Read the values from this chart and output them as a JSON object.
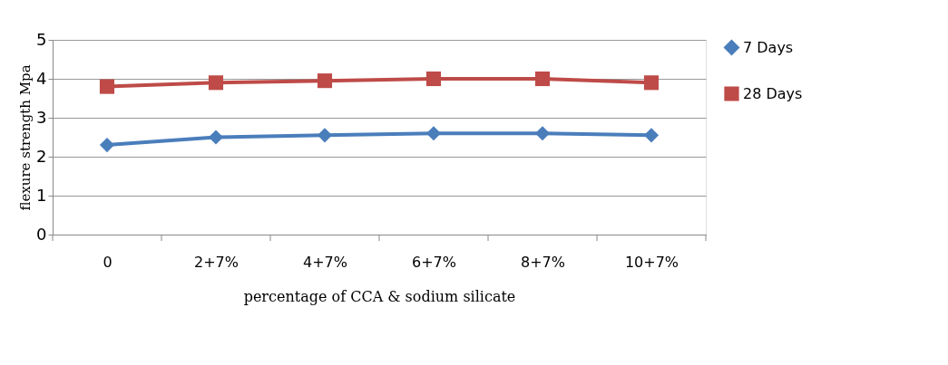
{
  "chart_data": {
    "type": "line",
    "xlabel": "percentage of CCA & sodium silicate",
    "ylabel": "flexure strength Mpa",
    "categories": [
      "0",
      "2+7%",
      "4+7%",
      "6+7%",
      "8+7%",
      "10+7%"
    ],
    "series": [
      {
        "name": "7 Days",
        "color": "#4a7ebb",
        "marker": "diamond",
        "values": [
          2.3,
          2.5,
          2.55,
          2.6,
          2.6,
          2.55
        ]
      },
      {
        "name": "28 Days",
        "color": "#be4b48",
        "marker": "square",
        "values": [
          3.8,
          3.9,
          3.95,
          4.0,
          4.0,
          3.9
        ]
      }
    ],
    "ylim": [
      0,
      5
    ],
    "yticks": [
      0,
      1,
      2,
      3,
      4,
      5
    ],
    "grid": "y",
    "legend": "right",
    "line_style": "solid"
  }
}
